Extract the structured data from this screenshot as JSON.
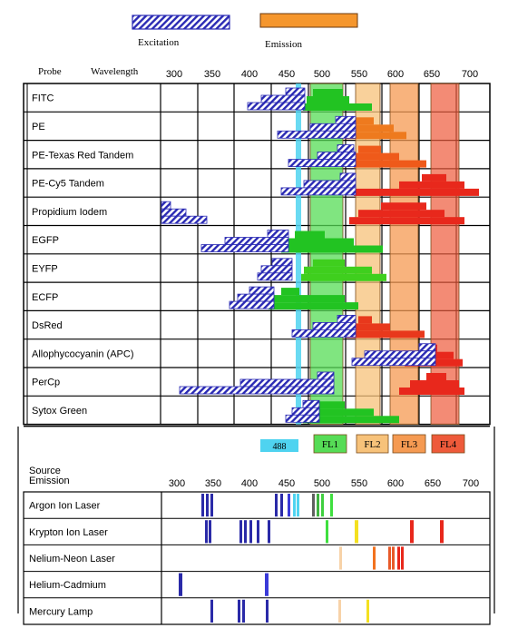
{
  "legend": {
    "excitation_label": "Excitation",
    "emission_label": "Emission",
    "excitation_color": "#2a2ab4",
    "emission_color": "#f5962d"
  },
  "top_header": {
    "probe_label": "Probe",
    "wavelength_label": "Wavelength"
  },
  "bottom_header": {
    "source_label": "Source",
    "emission_label": "Emission"
  },
  "wavelength_ticks": [
    "300",
    "350",
    "400",
    "450",
    "500",
    "550",
    "600",
    "650",
    "700"
  ],
  "laser_band": {
    "label": "488",
    "color": "#4fd3f0"
  },
  "filters": [
    {
      "label": "FL1",
      "color": "#56dc56"
    },
    {
      "label": "FL2",
      "color": "#f7c27a"
    },
    {
      "label": "FL3",
      "color": "#f59a52"
    },
    {
      "label": "FL4",
      "color": "#ee5a3a"
    }
  ],
  "probes": [
    {
      "name": "FITC",
      "emission_color": "#22c322"
    },
    {
      "name": "PE",
      "emission_color": "#ee7a1e"
    },
    {
      "name": "PE-Texas Red Tandem",
      "emission_color": "#ef5a1a"
    },
    {
      "name": "PE-Cy5 Tandem",
      "emission_color": "#e8281c"
    },
    {
      "name": "Propidium  Iodem",
      "emission_color": "#e8281c"
    },
    {
      "name": "EGFP",
      "emission_color": "#22c322"
    },
    {
      "name": "EYFP",
      "emission_color": "#3fcf1e"
    },
    {
      "name": "ECFP",
      "emission_color": "#22c322"
    },
    {
      "name": "DsRed",
      "emission_color": "#e8381c"
    },
    {
      "name": "Allophycocyanin (APC)",
      "emission_color": "#e8281c"
    },
    {
      "name": "PerCp",
      "emission_color": "#e8281c"
    },
    {
      "name": "Sytox Green",
      "emission_color": "#22c322"
    }
  ],
  "sources": [
    {
      "name": "Argon Ion Laser"
    },
    {
      "name": "Krypton Ion Laser"
    },
    {
      "name": "Nelium-Neon Laser"
    },
    {
      "name": "Helium-Cadmium"
    },
    {
      "name": "Mercury Lamp"
    }
  ]
}
